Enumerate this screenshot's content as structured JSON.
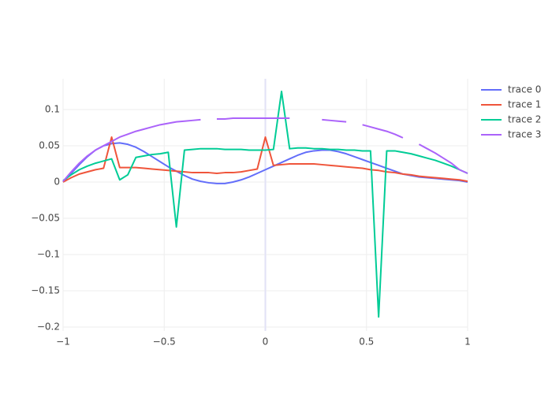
{
  "chart_data": {
    "type": "line",
    "x": [
      -1,
      -0.96,
      -0.92,
      -0.88,
      -0.84,
      -0.8,
      -0.76,
      -0.72,
      -0.68,
      -0.64,
      -0.6,
      -0.56,
      -0.52,
      -0.48,
      -0.44,
      -0.4,
      -0.36,
      -0.32,
      -0.28,
      -0.24,
      -0.2,
      -0.16,
      -0.12,
      -0.08,
      -0.04,
      0,
      0.04,
      0.08,
      0.12,
      0.16,
      0.2,
      0.24,
      0.28,
      0.32,
      0.36,
      0.4,
      0.44,
      0.48,
      0.52,
      0.56,
      0.6,
      0.64,
      0.68,
      0.72,
      0.76,
      0.8,
      0.84,
      0.88,
      0.92,
      0.96,
      1
    ],
    "series": [
      {
        "name": "trace 0",
        "color": "#636efa",
        "values": [
          0,
          0.012,
          0.024,
          0.035,
          0.044,
          0.05,
          0.053,
          0.054,
          0.052,
          0.048,
          0.042,
          0.035,
          0.028,
          0.021,
          0.015,
          0.009,
          0.004,
          0.001,
          -0.001,
          -0.002,
          -0.002,
          0,
          0.003,
          0.007,
          0.012,
          0.017,
          0.022,
          0.027,
          0.032,
          0.037,
          0.041,
          0.043,
          0.044,
          0.044,
          0.042,
          0.039,
          0.035,
          0.031,
          0.027,
          0.023,
          0.019,
          0.015,
          0.011,
          0.009,
          0.007,
          0.006,
          0.005,
          0.004,
          0.003,
          0.002,
          0
        ]
      },
      {
        "name": "trace 1",
        "color": "#EF553B",
        "values": [
          0,
          0.006,
          0.011,
          0.014,
          0.017,
          0.019,
          0.062,
          0.02,
          0.02,
          0.02,
          0.019,
          0.018,
          0.017,
          0.016,
          0.015,
          0.014,
          0.013,
          0.013,
          0.013,
          0.012,
          0.013,
          0.013,
          0.014,
          0.016,
          0.018,
          0.062,
          0.023,
          0.024,
          0.025,
          0.025,
          0.025,
          0.025,
          0.024,
          0.023,
          0.022,
          0.021,
          0.02,
          0.019,
          0.017,
          0.016,
          0.014,
          0.013,
          0.011,
          0.01,
          0.008,
          0.007,
          0.006,
          0.005,
          0.004,
          0.003,
          0.001
        ]
      },
      {
        "name": "trace 2",
        "color": "#00cc96",
        "values": [
          0.002,
          0.01,
          0.017,
          0.022,
          0.026,
          0.029,
          0.032,
          0.003,
          0.01,
          0.034,
          0.036,
          0.038,
          0.039,
          0.041,
          -0.062,
          0.044,
          0.045,
          0.046,
          0.046,
          0.046,
          0.045,
          0.045,
          0.045,
          0.044,
          0.044,
          0.044,
          0.045,
          0.125,
          0.046,
          0.047,
          0.047,
          0.046,
          0.046,
          0.045,
          0.045,
          0.044,
          0.044,
          0.043,
          0.043,
          -0.186,
          0.043,
          0.043,
          0.041,
          0.039,
          0.036,
          0.033,
          0.03,
          0.026,
          0.022,
          0.017,
          0.012
        ]
      },
      {
        "name": "trace 3",
        "color": "#ab63fa",
        "values": [
          0.001,
          0.014,
          0.026,
          0.036,
          0.044,
          0.05,
          0.056,
          0.062,
          0.066,
          0.07,
          0.073,
          0.076,
          0.079,
          0.081,
          0.083,
          0.084,
          0.085,
          0.086,
          null,
          0.087,
          0.087,
          0.088,
          0.088,
          0.088,
          0.088,
          0.088,
          0.088,
          0.088,
          0.088,
          null,
          0.087,
          null,
          0.086,
          0.085,
          0.084,
          0.083,
          null,
          0.079,
          0.076,
          0.073,
          0.07,
          0.066,
          0.061,
          null,
          0.052,
          0.046,
          0.04,
          0.033,
          0.026,
          0.017,
          0.012
        ]
      }
    ],
    "xlim": [
      -1,
      1
    ],
    "xticks": [
      {
        "value": -1,
        "label": "−1"
      },
      {
        "value": -0.5,
        "label": "−0.5"
      },
      0,
      0.5,
      1
    ],
    "ylim": [
      -0.2054,
      0.1424
    ],
    "yticks": [
      {
        "value": -0.2,
        "label": "−0.2"
      },
      {
        "value": -0.15,
        "label": "−0.15"
      },
      {
        "value": -0.1,
        "label": "−0.1"
      },
      {
        "value": -0.05,
        "label": "−0.05"
      },
      0,
      0.05,
      0.1
    ],
    "grid": true,
    "legend": "right"
  }
}
